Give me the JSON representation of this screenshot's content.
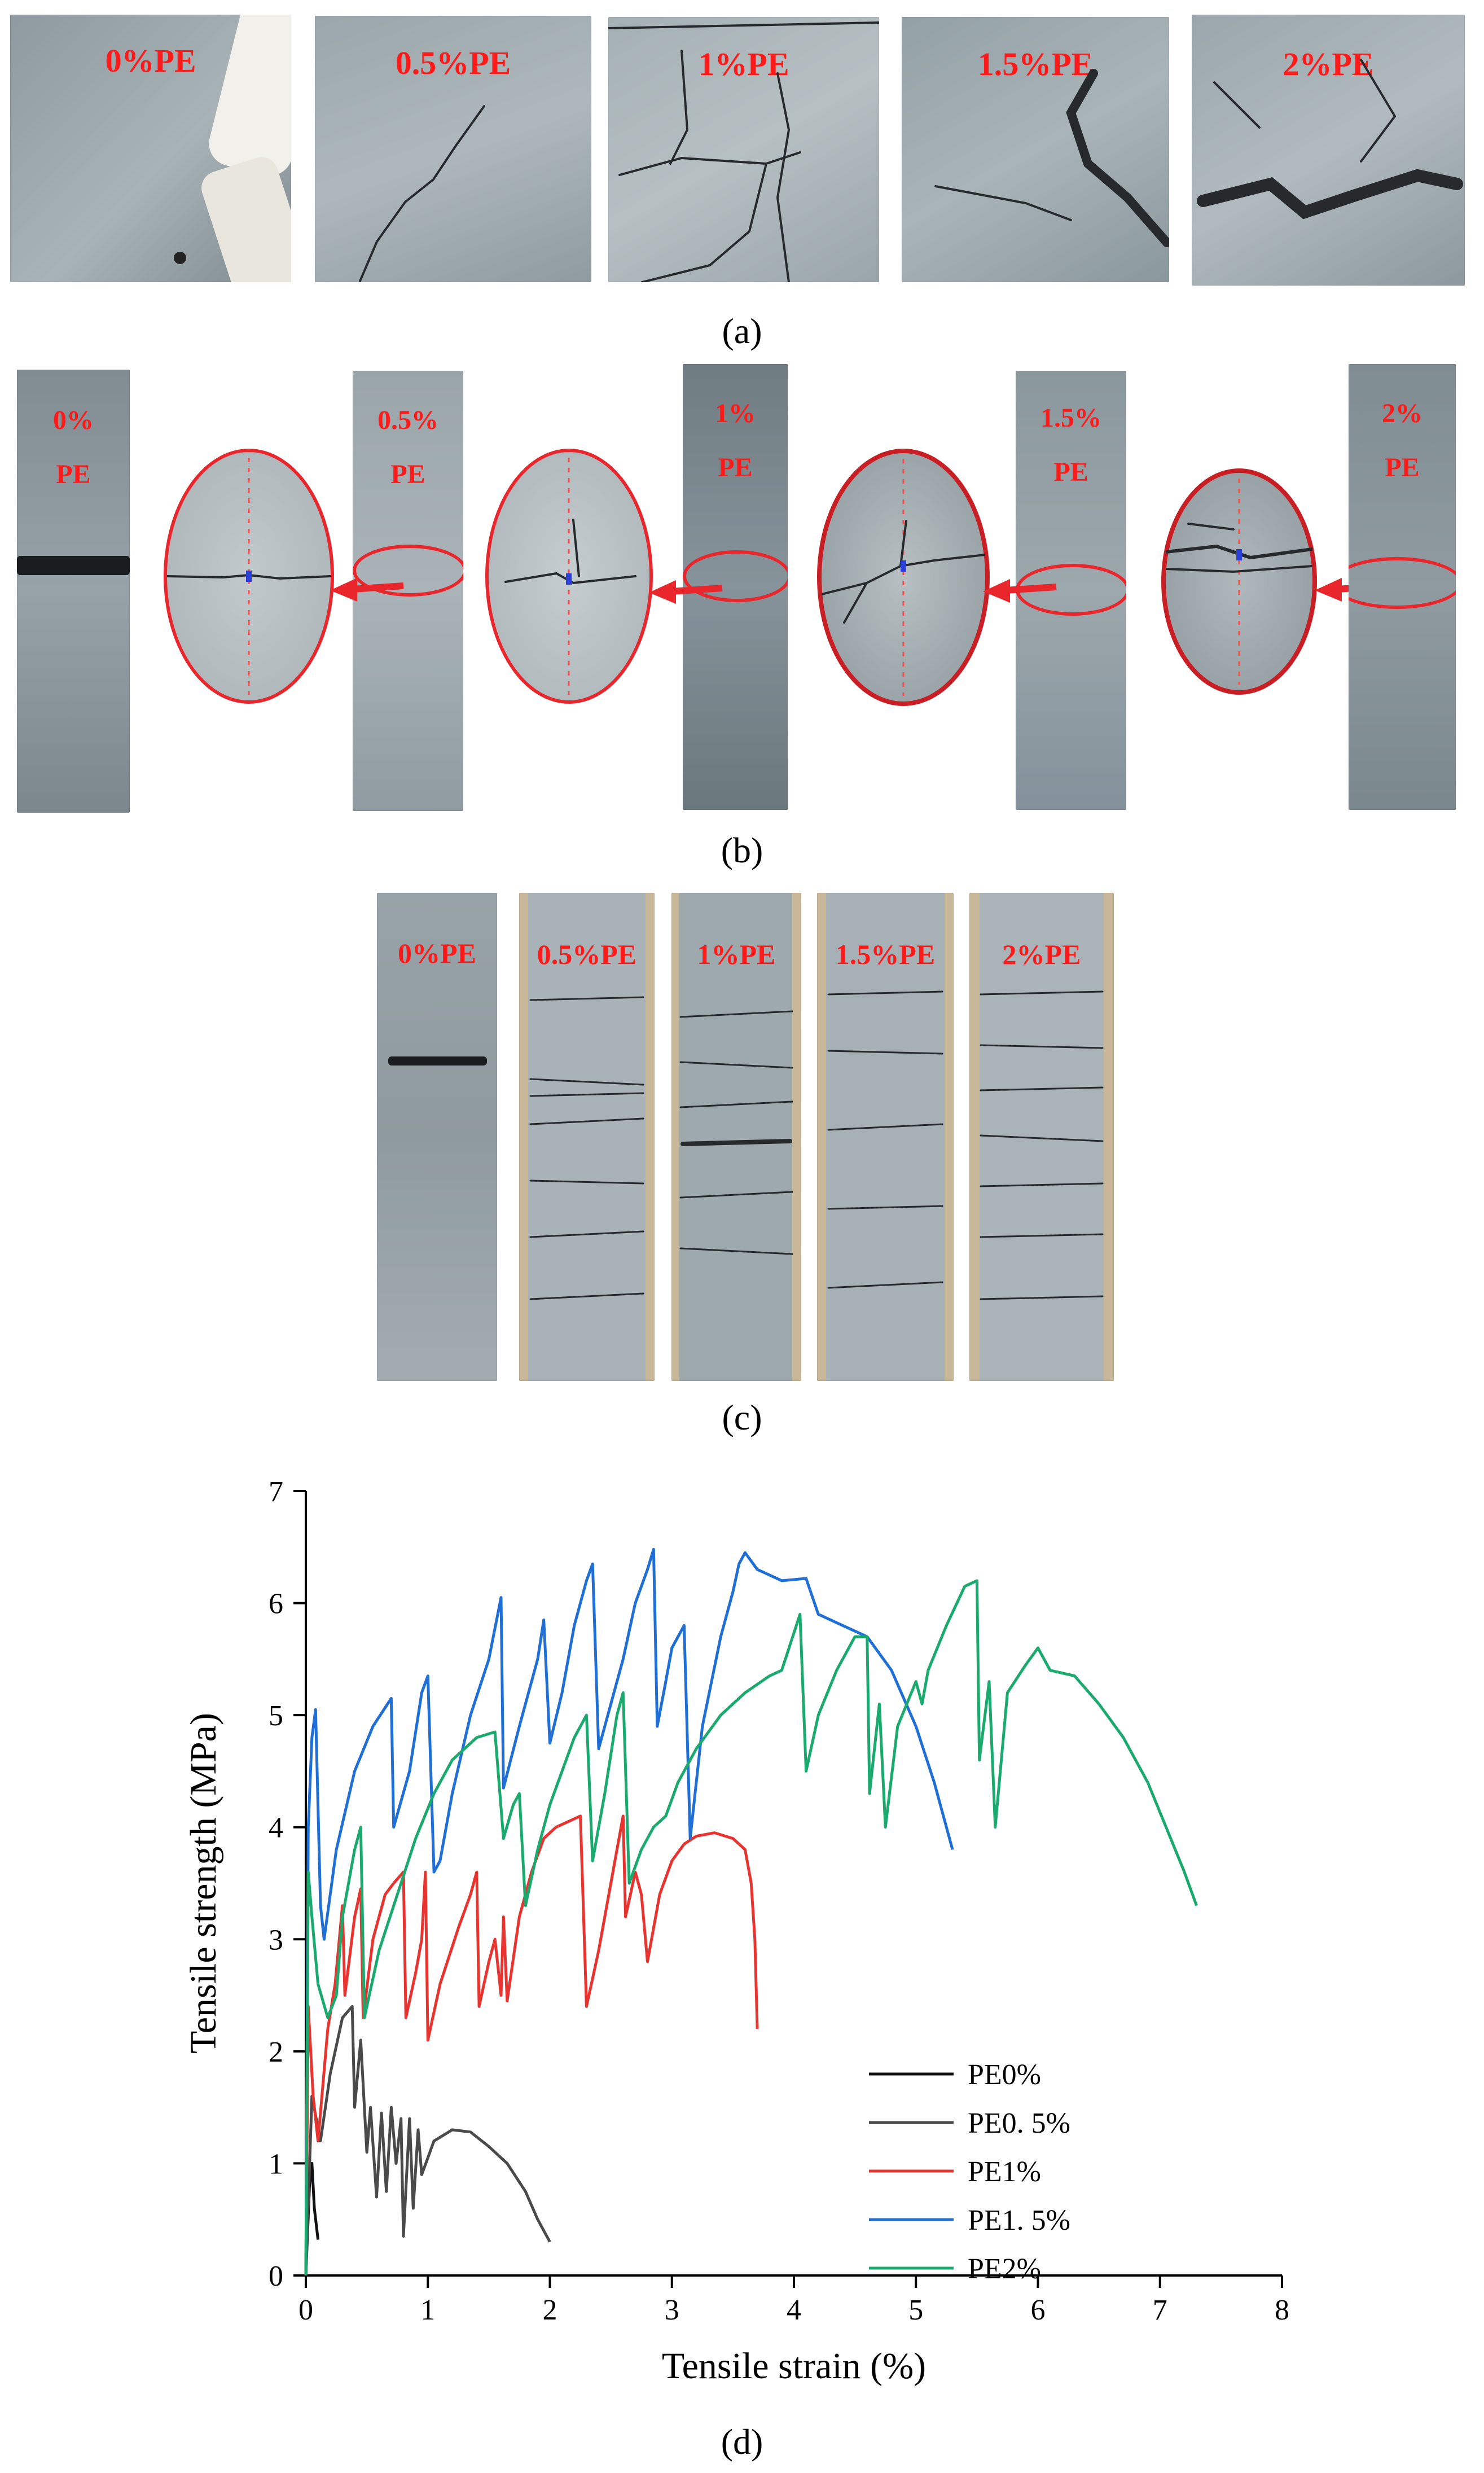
{
  "panel_a": {
    "caption": "(a)",
    "specimens": [
      {
        "label": "0%PE"
      },
      {
        "label": "0.5%PE"
      },
      {
        "label": "1%PE"
      },
      {
        "label": "1.5%PE"
      },
      {
        "label": "2%PE"
      }
    ]
  },
  "panel_b": {
    "caption": "(b)",
    "specimens": [
      {
        "pct": "0%",
        "pe": "PE"
      },
      {
        "pct": "0.5%",
        "pe": "PE"
      },
      {
        "pct": "1%",
        "pe": "PE"
      },
      {
        "pct": "1.5%",
        "pe": "PE"
      },
      {
        "pct": "2%",
        "pe": "PE"
      }
    ]
  },
  "panel_c": {
    "caption": "(c)",
    "specimens": [
      {
        "label": "0%PE"
      },
      {
        "label": "0.5%PE"
      },
      {
        "label": "1%PE"
      },
      {
        "label": "1.5%PE"
      },
      {
        "label": "2%PE"
      }
    ]
  },
  "panel_d": {
    "caption": "(d)"
  },
  "colors": {
    "label_red": "#ff1a1a",
    "concrete_light": "#aab5ba",
    "concrete_dark": "#7f8b91"
  },
  "chart_data": {
    "type": "line",
    "xlabel": "Tensile strain (%)",
    "ylabel": "Tensile strength (MPa)",
    "xlim": [
      0,
      8
    ],
    "ylim": [
      0,
      7
    ],
    "xticks": [
      "0",
      "1",
      "2",
      "3",
      "4",
      "5",
      "6",
      "7",
      "8"
    ],
    "yticks": [
      "0",
      "1",
      "2",
      "3",
      "4",
      "5",
      "6",
      "7"
    ],
    "legend_position": "bottom-right",
    "series": [
      {
        "name": "PE0%",
        "color": "#111111",
        "points": [
          [
            0,
            0
          ],
          [
            0.03,
            0.8
          ],
          [
            0.05,
            1.0
          ],
          [
            0.07,
            0.6
          ],
          [
            0.1,
            0.32
          ]
        ]
      },
      {
        "name": "PE0. 5%",
        "color": "#4a4a4a",
        "points": [
          [
            0,
            0
          ],
          [
            0.05,
            1.6
          ],
          [
            0.12,
            1.2
          ],
          [
            0.2,
            1.8
          ],
          [
            0.3,
            2.3
          ],
          [
            0.38,
            2.4
          ],
          [
            0.4,
            1.5
          ],
          [
            0.45,
            2.1
          ],
          [
            0.5,
            1.1
          ],
          [
            0.53,
            1.5
          ],
          [
            0.58,
            0.7
          ],
          [
            0.62,
            1.45
          ],
          [
            0.66,
            0.75
          ],
          [
            0.7,
            1.5
          ],
          [
            0.74,
            1.0
          ],
          [
            0.78,
            1.4
          ],
          [
            0.8,
            0.35
          ],
          [
            0.85,
            1.4
          ],
          [
            0.88,
            0.6
          ],
          [
            0.92,
            1.3
          ],
          [
            0.95,
            0.9
          ],
          [
            1.05,
            1.2
          ],
          [
            1.2,
            1.3
          ],
          [
            1.35,
            1.28
          ],
          [
            1.5,
            1.15
          ],
          [
            1.65,
            1.0
          ],
          [
            1.8,
            0.75
          ],
          [
            1.9,
            0.5
          ],
          [
            2.0,
            0.3
          ]
        ]
      },
      {
        "name": "PE1%",
        "color": "#e8332e",
        "points": [
          [
            0,
            0
          ],
          [
            0.02,
            2.4
          ],
          [
            0.06,
            1.6
          ],
          [
            0.1,
            1.2
          ],
          [
            0.18,
            2.2
          ],
          [
            0.24,
            2.6
          ],
          [
            0.3,
            3.3
          ],
          [
            0.32,
            2.5
          ],
          [
            0.4,
            3.2
          ],
          [
            0.45,
            3.45
          ],
          [
            0.47,
            2.3
          ],
          [
            0.55,
            3.0
          ],
          [
            0.65,
            3.4
          ],
          [
            0.72,
            3.5
          ],
          [
            0.8,
            3.6
          ],
          [
            0.82,
            2.3
          ],
          [
            0.9,
            2.7
          ],
          [
            0.95,
            3.0
          ],
          [
            0.98,
            3.6
          ],
          [
            1.0,
            2.1
          ],
          [
            1.1,
            2.6
          ],
          [
            1.25,
            3.1
          ],
          [
            1.35,
            3.4
          ],
          [
            1.4,
            3.6
          ],
          [
            1.42,
            2.4
          ],
          [
            1.5,
            2.8
          ],
          [
            1.55,
            3.0
          ],
          [
            1.6,
            2.5
          ],
          [
            1.62,
            3.2
          ],
          [
            1.65,
            2.45
          ],
          [
            1.75,
            3.2
          ],
          [
            1.85,
            3.6
          ],
          [
            1.95,
            3.9
          ],
          [
            2.05,
            4.0
          ],
          [
            2.15,
            4.05
          ],
          [
            2.25,
            4.1
          ],
          [
            2.3,
            2.4
          ],
          [
            2.4,
            2.9
          ],
          [
            2.5,
            3.5
          ],
          [
            2.55,
            3.8
          ],
          [
            2.6,
            4.1
          ],
          [
            2.62,
            3.2
          ],
          [
            2.7,
            3.6
          ],
          [
            2.75,
            3.4
          ],
          [
            2.8,
            2.8
          ],
          [
            2.9,
            3.4
          ],
          [
            3.0,
            3.7
          ],
          [
            3.1,
            3.85
          ],
          [
            3.2,
            3.92
          ],
          [
            3.35,
            3.95
          ],
          [
            3.5,
            3.9
          ],
          [
            3.6,
            3.8
          ],
          [
            3.65,
            3.5
          ],
          [
            3.68,
            3.0
          ],
          [
            3.7,
            2.2
          ]
        ]
      },
      {
        "name": "PE1. 5%",
        "color": "#1f6fd6",
        "points": [
          [
            0,
            0
          ],
          [
            0.02,
            4.0
          ],
          [
            0.05,
            4.8
          ],
          [
            0.08,
            5.05
          ],
          [
            0.12,
            3.3
          ],
          [
            0.15,
            3.0
          ],
          [
            0.25,
            3.8
          ],
          [
            0.4,
            4.5
          ],
          [
            0.55,
            4.9
          ],
          [
            0.7,
            5.15
          ],
          [
            0.72,
            4.0
          ],
          [
            0.85,
            4.5
          ],
          [
            0.95,
            5.2
          ],
          [
            1.0,
            5.35
          ],
          [
            1.05,
            3.6
          ],
          [
            1.1,
            3.7
          ],
          [
            1.2,
            4.3
          ],
          [
            1.35,
            5.0
          ],
          [
            1.5,
            5.5
          ],
          [
            1.6,
            6.05
          ],
          [
            1.62,
            4.35
          ],
          [
            1.75,
            4.9
          ],
          [
            1.9,
            5.5
          ],
          [
            1.95,
            5.85
          ],
          [
            2.0,
            4.75
          ],
          [
            2.1,
            5.2
          ],
          [
            2.2,
            5.8
          ],
          [
            2.3,
            6.2
          ],
          [
            2.35,
            6.35
          ],
          [
            2.4,
            4.7
          ],
          [
            2.5,
            5.1
          ],
          [
            2.6,
            5.5
          ],
          [
            2.7,
            6.0
          ],
          [
            2.8,
            6.3
          ],
          [
            2.85,
            6.48
          ],
          [
            2.88,
            4.9
          ],
          [
            2.95,
            5.3
          ],
          [
            3.0,
            5.6
          ],
          [
            3.1,
            5.8
          ],
          [
            3.15,
            3.9
          ],
          [
            3.25,
            4.9
          ],
          [
            3.4,
            5.7
          ],
          [
            3.5,
            6.1
          ],
          [
            3.55,
            6.35
          ],
          [
            3.6,
            6.45
          ],
          [
            3.7,
            6.3
          ],
          [
            3.8,
            6.25
          ],
          [
            3.9,
            6.2
          ],
          [
            4.1,
            6.22
          ],
          [
            4.2,
            5.9
          ],
          [
            4.4,
            5.8
          ],
          [
            4.6,
            5.7
          ],
          [
            4.8,
            5.4
          ],
          [
            5.0,
            4.9
          ],
          [
            5.15,
            4.4
          ],
          [
            5.3,
            3.8
          ]
        ]
      },
      {
        "name": "PE2%",
        "color": "#1aaa6e",
        "points": [
          [
            0,
            0
          ],
          [
            0.02,
            3.6
          ],
          [
            0.05,
            3.2
          ],
          [
            0.1,
            2.6
          ],
          [
            0.18,
            2.3
          ],
          [
            0.25,
            2.5
          ],
          [
            0.3,
            3.2
          ],
          [
            0.4,
            3.8
          ],
          [
            0.45,
            4.0
          ],
          [
            0.48,
            2.3
          ],
          [
            0.6,
            2.9
          ],
          [
            0.75,
            3.4
          ],
          [
            0.9,
            3.9
          ],
          [
            1.05,
            4.3
          ],
          [
            1.2,
            4.6
          ],
          [
            1.4,
            4.8
          ],
          [
            1.55,
            4.85
          ],
          [
            1.62,
            3.9
          ],
          [
            1.7,
            4.2
          ],
          [
            1.75,
            4.3
          ],
          [
            1.8,
            3.3
          ],
          [
            1.9,
            3.8
          ],
          [
            2.0,
            4.2
          ],
          [
            2.1,
            4.5
          ],
          [
            2.2,
            4.8
          ],
          [
            2.3,
            5.0
          ],
          [
            2.35,
            3.7
          ],
          [
            2.45,
            4.3
          ],
          [
            2.55,
            5.0
          ],
          [
            2.6,
            5.2
          ],
          [
            2.65,
            3.5
          ],
          [
            2.75,
            3.8
          ],
          [
            2.85,
            4.0
          ],
          [
            2.95,
            4.1
          ],
          [
            3.05,
            4.4
          ],
          [
            3.2,
            4.7
          ],
          [
            3.4,
            5.0
          ],
          [
            3.6,
            5.2
          ],
          [
            3.8,
            5.35
          ],
          [
            3.9,
            5.4
          ],
          [
            4.05,
            5.9
          ],
          [
            4.1,
            4.5
          ],
          [
            4.2,
            5.0
          ],
          [
            4.35,
            5.4
          ],
          [
            4.5,
            5.7
          ],
          [
            4.6,
            5.7
          ],
          [
            4.62,
            4.3
          ],
          [
            4.7,
            5.1
          ],
          [
            4.75,
            4.0
          ],
          [
            4.85,
            4.9
          ],
          [
            5.0,
            5.3
          ],
          [
            5.05,
            5.1
          ],
          [
            5.1,
            5.4
          ],
          [
            5.25,
            5.8
          ],
          [
            5.4,
            6.15
          ],
          [
            5.5,
            6.2
          ],
          [
            5.52,
            4.6
          ],
          [
            5.6,
            5.3
          ],
          [
            5.65,
            4.0
          ],
          [
            5.75,
            5.2
          ],
          [
            5.9,
            5.45
          ],
          [
            6.0,
            5.6
          ],
          [
            6.1,
            5.4
          ],
          [
            6.3,
            5.35
          ],
          [
            6.5,
            5.1
          ],
          [
            6.7,
            4.8
          ],
          [
            6.9,
            4.4
          ],
          [
            7.05,
            4.0
          ],
          [
            7.2,
            3.6
          ],
          [
            7.3,
            3.3
          ]
        ]
      }
    ]
  }
}
